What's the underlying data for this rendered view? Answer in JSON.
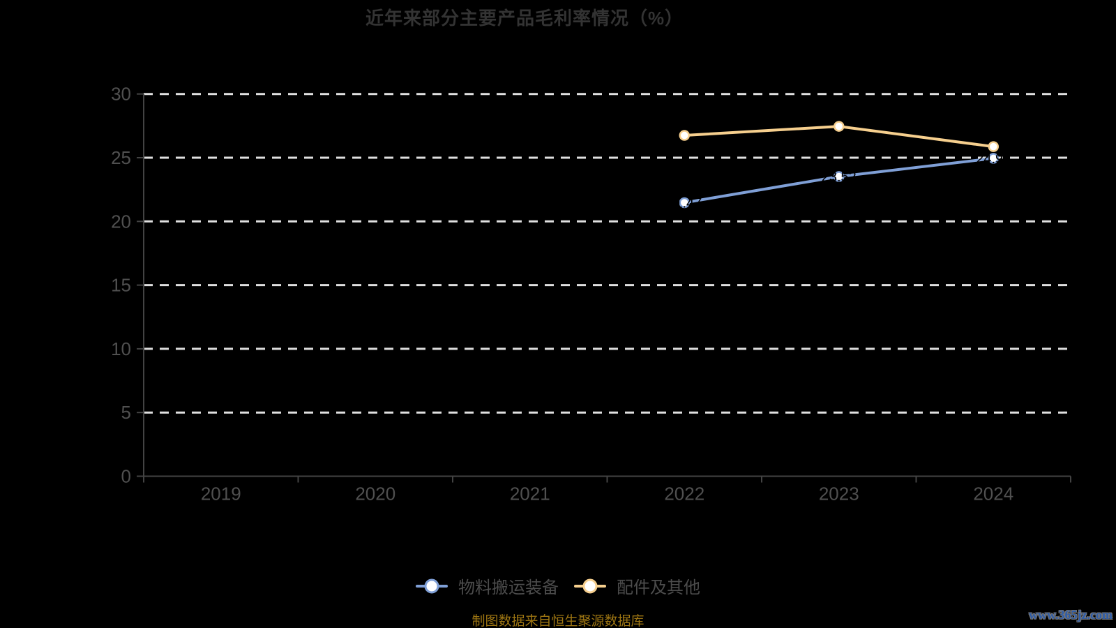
{
  "chart_data": {
    "type": "line",
    "title": "近年来部分主要产品毛利率情况（%）",
    "categories": [
      "2019",
      "2020",
      "2021",
      "2022",
      "2023",
      "2024"
    ],
    "series": [
      {
        "name": "物料搬运装备",
        "color": "#7f9fd6",
        "values": [
          null,
          null,
          null,
          21.47,
          23.52,
          24.95
        ],
        "label_position": "center"
      },
      {
        "name": "配件及其他",
        "color": "#f6cf8e",
        "values": [
          null,
          null,
          null,
          26.75,
          27.46,
          25.87
        ],
        "label_position": "top"
      }
    ],
    "ylim": [
      0,
      30
    ],
    "yticks": [
      0,
      5,
      10,
      15,
      20,
      25,
      30
    ],
    "grid": "horizontal-dashed-white",
    "legend_position": "bottom",
    "point_label_color": "#000000",
    "marker": "circle-white-fill"
  },
  "footer": {
    "source_note": "制图数据来自恒生聚源数据库",
    "watermark": "www.365jz.com"
  },
  "colors": {
    "background": "#000000",
    "grid": "#e0e0e0",
    "axis": "#434343",
    "axis_label": "#505050",
    "title": "#333333",
    "legend_label": "#4c4c4c",
    "source_note": "#9d7512",
    "watermark": "#2e5ca8",
    "series_blue": "#7f9fd6",
    "series_yellow": "#f6cf8e"
  }
}
